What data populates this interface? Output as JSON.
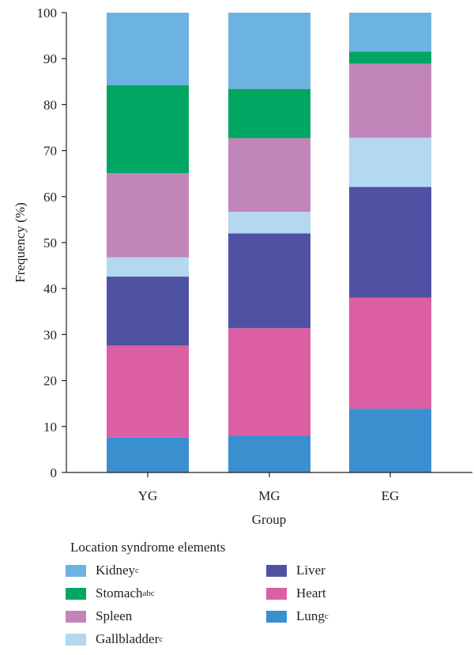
{
  "chart_data": {
    "type": "bar",
    "stacked": true,
    "categories": [
      "YG",
      "MG",
      "EG"
    ],
    "xlabel": "Group",
    "ylabel": "Frequency (%)",
    "ylim": [
      0,
      100
    ],
    "yticks": [
      "0",
      "10",
      "20",
      "30",
      "40",
      "50",
      "60",
      "70",
      "80",
      "90",
      "100"
    ],
    "grid": false,
    "legend_title": "Location syndrome elements",
    "legend_position": "bottom",
    "series": [
      {
        "name": "Lung",
        "sup": "c",
        "color": "#3a8fcf",
        "values": [
          7.6,
          8.0,
          13.9
        ]
      },
      {
        "name": "Heart",
        "sup": "",
        "color": "#dc5fa3",
        "values": [
          20.0,
          23.4,
          24.1
        ]
      },
      {
        "name": "Liver",
        "sup": "",
        "color": "#4f52a3",
        "values": [
          15.0,
          20.6,
          24.1
        ]
      },
      {
        "name": "Gallbladder",
        "sup": "c",
        "color": "#b3d8f0",
        "values": [
          4.2,
          4.7,
          10.7
        ]
      },
      {
        "name": "Spleen",
        "sup": "",
        "color": "#c285ba",
        "values": [
          18.3,
          16.0,
          16.1
        ]
      },
      {
        "name": "Stomach",
        "sup": "abc",
        "color": "#00a662",
        "values": [
          19.1,
          10.7,
          2.6
        ]
      },
      {
        "name": "Kidney",
        "sup": "c",
        "color": "#6db3e1",
        "values": [
          15.8,
          16.6,
          8.5
        ]
      }
    ]
  }
}
